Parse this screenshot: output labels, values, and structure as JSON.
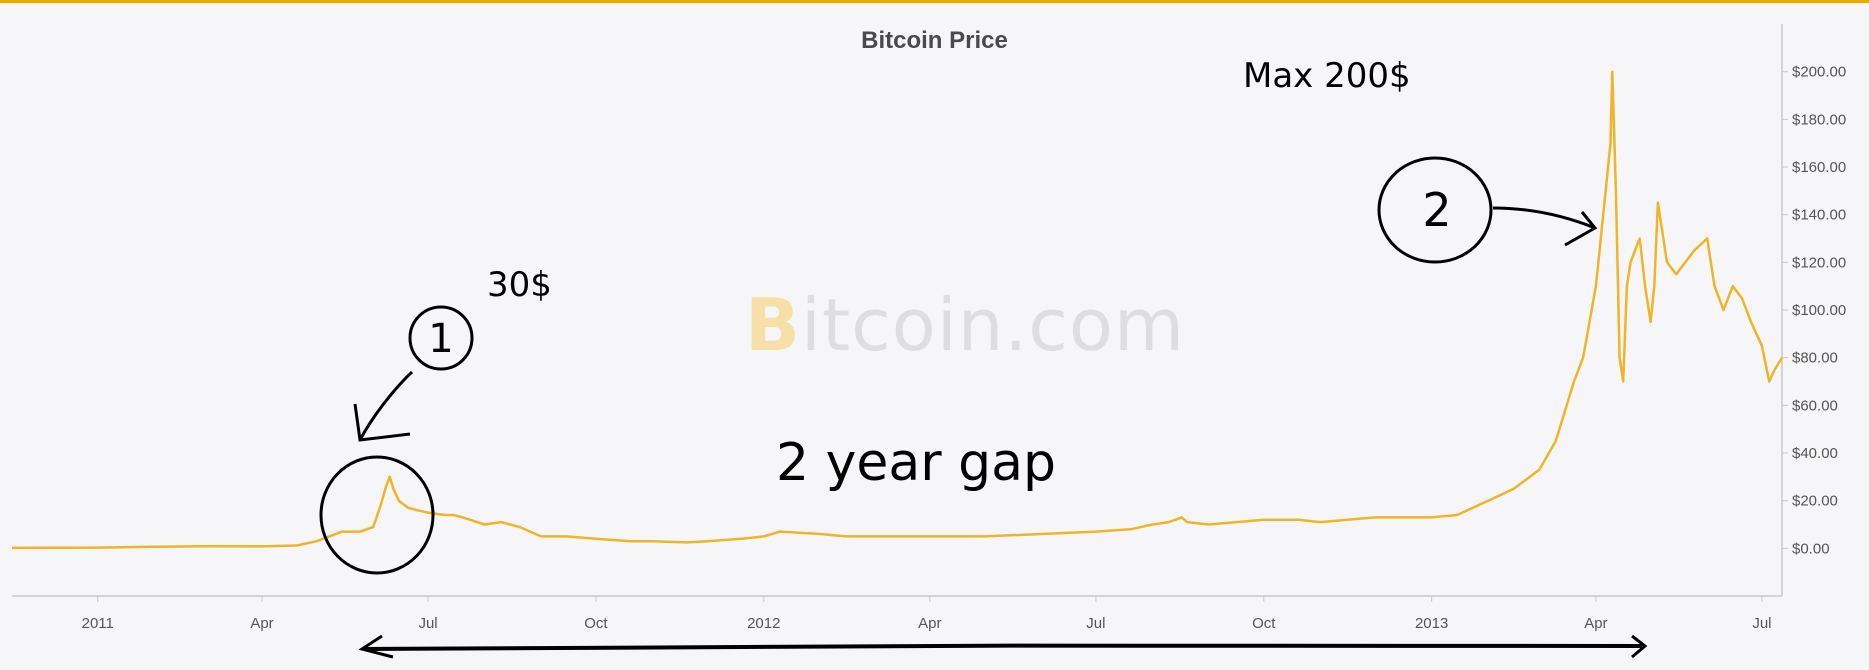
{
  "colors": {
    "accent": "#f2a900",
    "line": "#f0b428",
    "axis": "#c8c8c8",
    "background": "#f6f6f8",
    "annotation": "#000000"
  },
  "watermark": {
    "brand_initial": "B",
    "brand_rest": "itcoin.com"
  },
  "annotations": {
    "max_label": "Max 200$",
    "thirty_label": "30$",
    "gap_label": "2 year gap",
    "circle_1": "1",
    "circle_2": "2"
  },
  "chart_data": {
    "type": "line",
    "title": "Bitcoin Price",
    "xlabel": "",
    "ylabel": "",
    "y_axis_position": "right",
    "ylim": [
      -20,
      220
    ],
    "y_ticks": [
      0,
      20,
      40,
      60,
      80,
      100,
      120,
      140,
      160,
      180,
      200
    ],
    "y_tick_labels": [
      "$0.00",
      "$20.00",
      "$40.00",
      "$60.00",
      "$80.00",
      "$100.00",
      "$120.00",
      "$140.00",
      "$160.00",
      "$180.00",
      "$200.00"
    ],
    "xlim": [
      "2010-11-15",
      "2013-07-12"
    ],
    "x_ticks": [
      "2011-01-01",
      "2011-04-01",
      "2011-07-01",
      "2011-10-01",
      "2012-01-01",
      "2012-04-01",
      "2012-07-01",
      "2012-10-01",
      "2013-01-01",
      "2013-04-01",
      "2013-07-01"
    ],
    "x_tick_labels": [
      "2011",
      "Apr",
      "Jul",
      "Oct",
      "2012",
      "Apr",
      "Jul",
      "Oct",
      "2013",
      "Apr",
      "Jul"
    ],
    "grid": false,
    "legend": "none",
    "series": [
      {
        "x": [
          "2010-11-15",
          "2011-01-01",
          "2011-02-01",
          "2011-03-01",
          "2011-04-01",
          "2011-04-20",
          "2011-05-01",
          "2011-05-15",
          "2011-05-25",
          "2011-06-01",
          "2011-06-05",
          "2011-06-08",
          "2011-06-10",
          "2011-06-12",
          "2011-06-15",
          "2011-06-20",
          "2011-06-25",
          "2011-07-01",
          "2011-07-10",
          "2011-07-15",
          "2011-07-20",
          "2011-08-01",
          "2011-08-10",
          "2011-08-20",
          "2011-09-01",
          "2011-09-15",
          "2011-10-01",
          "2011-10-20",
          "2011-11-01",
          "2011-11-20",
          "2011-12-01",
          "2011-12-20",
          "2012-01-01",
          "2012-01-10",
          "2012-02-01",
          "2012-02-15",
          "2012-03-01",
          "2012-04-01",
          "2012-05-01",
          "2012-06-01",
          "2012-07-01",
          "2012-07-20",
          "2012-08-01",
          "2012-08-10",
          "2012-08-17",
          "2012-08-20",
          "2012-09-01",
          "2012-10-01",
          "2012-10-20",
          "2012-11-01",
          "2012-12-01",
          "2013-01-01",
          "2013-01-15",
          "2013-02-01",
          "2013-02-15",
          "2013-03-01",
          "2013-03-10",
          "2013-03-20",
          "2013-03-25",
          "2013-04-01",
          "2013-04-05",
          "2013-04-09",
          "2013-04-10",
          "2013-04-12",
          "2013-04-14",
          "2013-04-16",
          "2013-04-18",
          "2013-04-20",
          "2013-04-25",
          "2013-04-28",
          "2013-05-01",
          "2013-05-03",
          "2013-05-05",
          "2013-05-10",
          "2013-05-15",
          "2013-05-20",
          "2013-05-25",
          "2013-06-01",
          "2013-06-05",
          "2013-06-10",
          "2013-06-15",
          "2013-06-20",
          "2013-06-25",
          "2013-07-01",
          "2013-07-05",
          "2013-07-08",
          "2013-07-12"
        ],
        "values": [
          0.2,
          0.3,
          0.7,
          0.9,
          0.8,
          1.2,
          3,
          7,
          7,
          9,
          18,
          26,
          30,
          25,
          20,
          17,
          16,
          15,
          14,
          14,
          13,
          10,
          11,
          9,
          5,
          5,
          4,
          3,
          3,
          2.5,
          3,
          4,
          5,
          7,
          6,
          5,
          5,
          5,
          5,
          6,
          7,
          8,
          10,
          11,
          13,
          11,
          10,
          12,
          12,
          11,
          13,
          13,
          14,
          20,
          25,
          33,
          45,
          70,
          80,
          110,
          140,
          170,
          200,
          150,
          80,
          70,
          110,
          120,
          130,
          110,
          95,
          110,
          145,
          120,
          115,
          120,
          125,
          130,
          110,
          100,
          110,
          105,
          95,
          85,
          70,
          75,
          80
        ]
      }
    ]
  }
}
